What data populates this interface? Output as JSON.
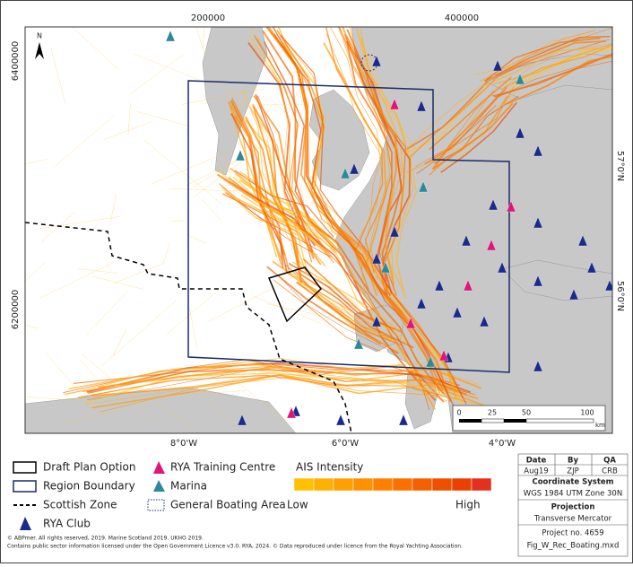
{
  "map": {
    "north": "N",
    "top_ticks": [
      "200000",
      "400000"
    ],
    "left_ticks": [
      "6400000",
      "6200000"
    ],
    "right_ticks": [
      "57°0'N",
      "56°0'N"
    ],
    "bottom_ticks": [
      "8°0'W",
      "6°0'W",
      "4°0'W"
    ],
    "scale_bar": {
      "labels": [
        "0",
        "25",
        "50",
        "100"
      ],
      "unit": "km"
    }
  },
  "legend": {
    "items": [
      "Draft Plan Option",
      "Region Boundary",
      "Scottish Zone",
      "RYA Club",
      "RYA Training Centre",
      "Marina",
      "General Boating Area"
    ],
    "ais": {
      "title": "AIS Intensity",
      "low": "Low",
      "high": "High"
    }
  },
  "credits": [
    "© ABPmer. All rights reserved, 2019. Marine Scotland 2019. UKHO 2019.",
    "Contains public sector information licensed under the Open Government Licence v3.0. RYA, 2024.  © Data reproduced under licence from the Royal Yachting Association."
  ],
  "info": {
    "headers": [
      "Date",
      "By",
      "QA"
    ],
    "values": [
      "Aug19",
      "ZJP",
      "CRB"
    ],
    "coord_title": "Coordinate System",
    "coord": "WGS 1984 UTM Zone 30N",
    "proj_title": "Projection",
    "proj": "Transverse Mercator",
    "project": "Project no. 4659",
    "file": "Fig_W_Rec_Boating.mxd"
  }
}
